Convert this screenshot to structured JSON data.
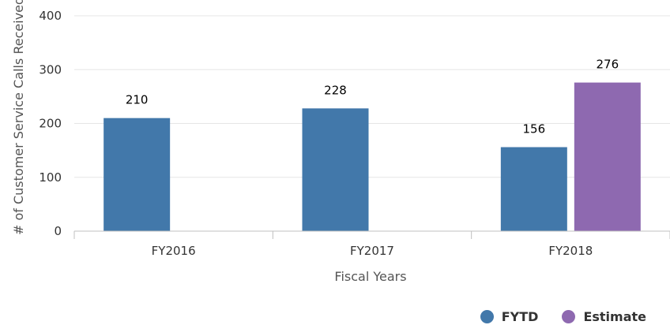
{
  "chart_data": {
    "type": "bar",
    "categories": [
      "FY2016",
      "FY2017",
      "FY2018"
    ],
    "series": [
      {
        "name": "FYTD",
        "color": "#4278aa",
        "values": [
          210,
          228,
          156
        ]
      },
      {
        "name": "Estimate",
        "color": "#8e69b0",
        "values": [
          null,
          null,
          276
        ]
      }
    ],
    "xlabel": "Fiscal Years",
    "ylabel": "# of Customer Service Calls Received",
    "ylim": [
      0,
      400
    ],
    "yticks": [
      0,
      100,
      200,
      300,
      400
    ],
    "grid": true,
    "legend_position": "bottom-right"
  }
}
